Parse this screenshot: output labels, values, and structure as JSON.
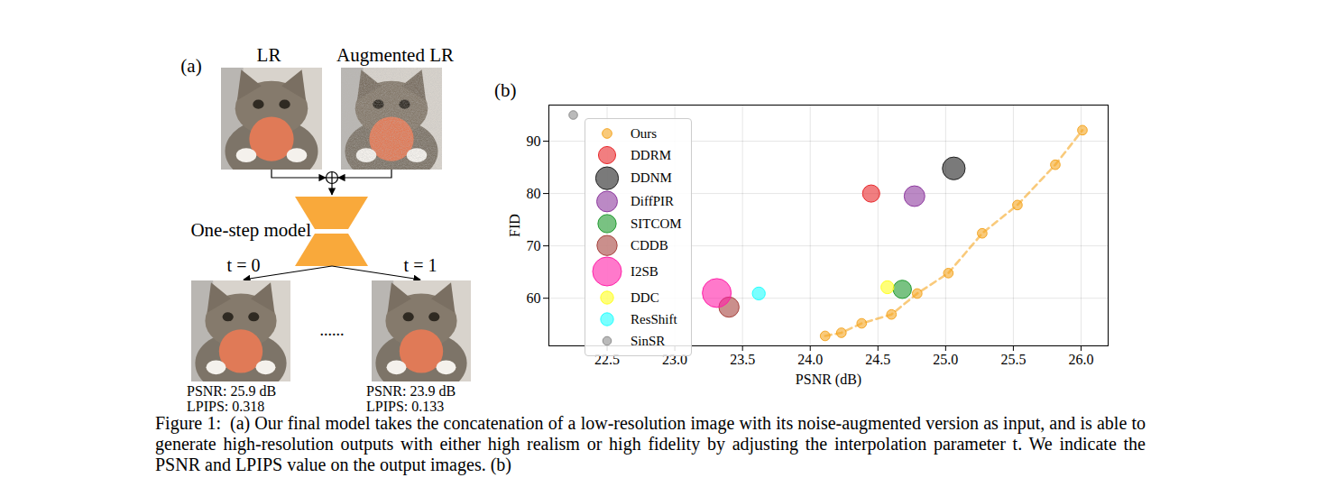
{
  "figure_a": {
    "label": "(a)",
    "inputs": [
      "LR",
      "Augmented LR"
    ],
    "model": "One-step model",
    "ellipsis": "......",
    "outputs": [
      {
        "t": "t = 0",
        "psnr": "PSNR: 25.9 dB",
        "lpips": "LPIPS: 0.318"
      },
      {
        "t": "t = 1",
        "psnr": "PSNR: 23.9 dB",
        "lpips": "LPIPS: 0.133"
      }
    ]
  },
  "chart_data": {
    "type": "scatter",
    "label": "(b)",
    "x_label": "PSNR (dB)",
    "y_label": "FID",
    "xlim": [
      22.07,
      26.2
    ],
    "ylim": [
      50.9,
      96.9
    ],
    "xticks": [
      22.5,
      {
        "value": 23,
        "label": "23.0"
      },
      23.5,
      {
        "value": 24,
        "label": "24.0"
      },
      24.5,
      {
        "value": 25,
        "label": "25.0"
      },
      25.5,
      {
        "value": 26,
        "label": "26.0"
      }
    ],
    "yticks": [
      60,
      70,
      80,
      90
    ],
    "grid": true,
    "legend": "upper left",
    "series": [
      {
        "name": "Ours",
        "color": "#f5a623",
        "marker": "circle",
        "line_style": "dashed",
        "x": [
          24.11,
          24.23,
          24.38,
          24.6,
          24.79,
          25.02,
          25.27,
          25.53,
          25.81,
          26.01
        ],
        "values": [
          52.8,
          53.4,
          55.2,
          56.9,
          60.9,
          64.8,
          72.4,
          77.8,
          85.5,
          92.1
        ],
        "size": [
          25,
          25,
          25,
          25,
          25,
          25,
          25,
          25,
          25,
          25
        ]
      },
      {
        "name": "DDRM",
        "color": "#e8282b",
        "marker": "circle",
        "x": [
          24.45
        ],
        "values": [
          80.0
        ],
        "size": [
          80
        ]
      },
      {
        "name": "DDNM",
        "color": "#222222",
        "marker": "circle",
        "x": [
          25.06
        ],
        "values": [
          84.8
        ],
        "size": [
          140
        ]
      },
      {
        "name": "DiffPIR",
        "color": "#8e3a9f",
        "marker": "circle",
        "x": [
          24.77
        ],
        "values": [
          79.5
        ],
        "size": [
          115
        ]
      },
      {
        "name": "SITCOM",
        "color": "#1f9a2e",
        "marker": "circle",
        "x": [
          24.68
        ],
        "values": [
          61.7
        ],
        "size": [
          90
        ]
      },
      {
        "name": "CDDB",
        "color": "#a7443f",
        "marker": "circle",
        "x": [
          23.4
        ],
        "values": [
          58.3
        ],
        "size": [
          110
        ]
      },
      {
        "name": "I2SB",
        "color": "#ff1fa8",
        "marker": "circle",
        "x": [
          23.31
        ],
        "values": [
          61.0
        ],
        "size": [
          225
        ]
      },
      {
        "name": "DDC",
        "color": "#ffff22",
        "marker": "circle",
        "x": [
          24.57
        ],
        "values": [
          62.1
        ],
        "size": [
          45
        ]
      },
      {
        "name": "ResShift",
        "color": "#22ffff",
        "marker": "circle",
        "x": [
          23.62
        ],
        "values": [
          60.9
        ],
        "size": [
          45
        ]
      },
      {
        "name": "SinSR",
        "color": "#8c8c8c",
        "marker": "circle",
        "x": [
          22.25
        ],
        "values": [
          95.0
        ],
        "size": [
          20
        ]
      }
    ]
  },
  "caption": {
    "label": "Figure 1:",
    "text": "(a) Our final model takes the concatenation of a low-resolution image with its noise-augmented version as input, and is able to generate high-resolution outputs with either high realism or high fidelity by adjusting the interpolation parameter t. We indicate the PSNR and LPIPS value on the output images. (b)"
  }
}
